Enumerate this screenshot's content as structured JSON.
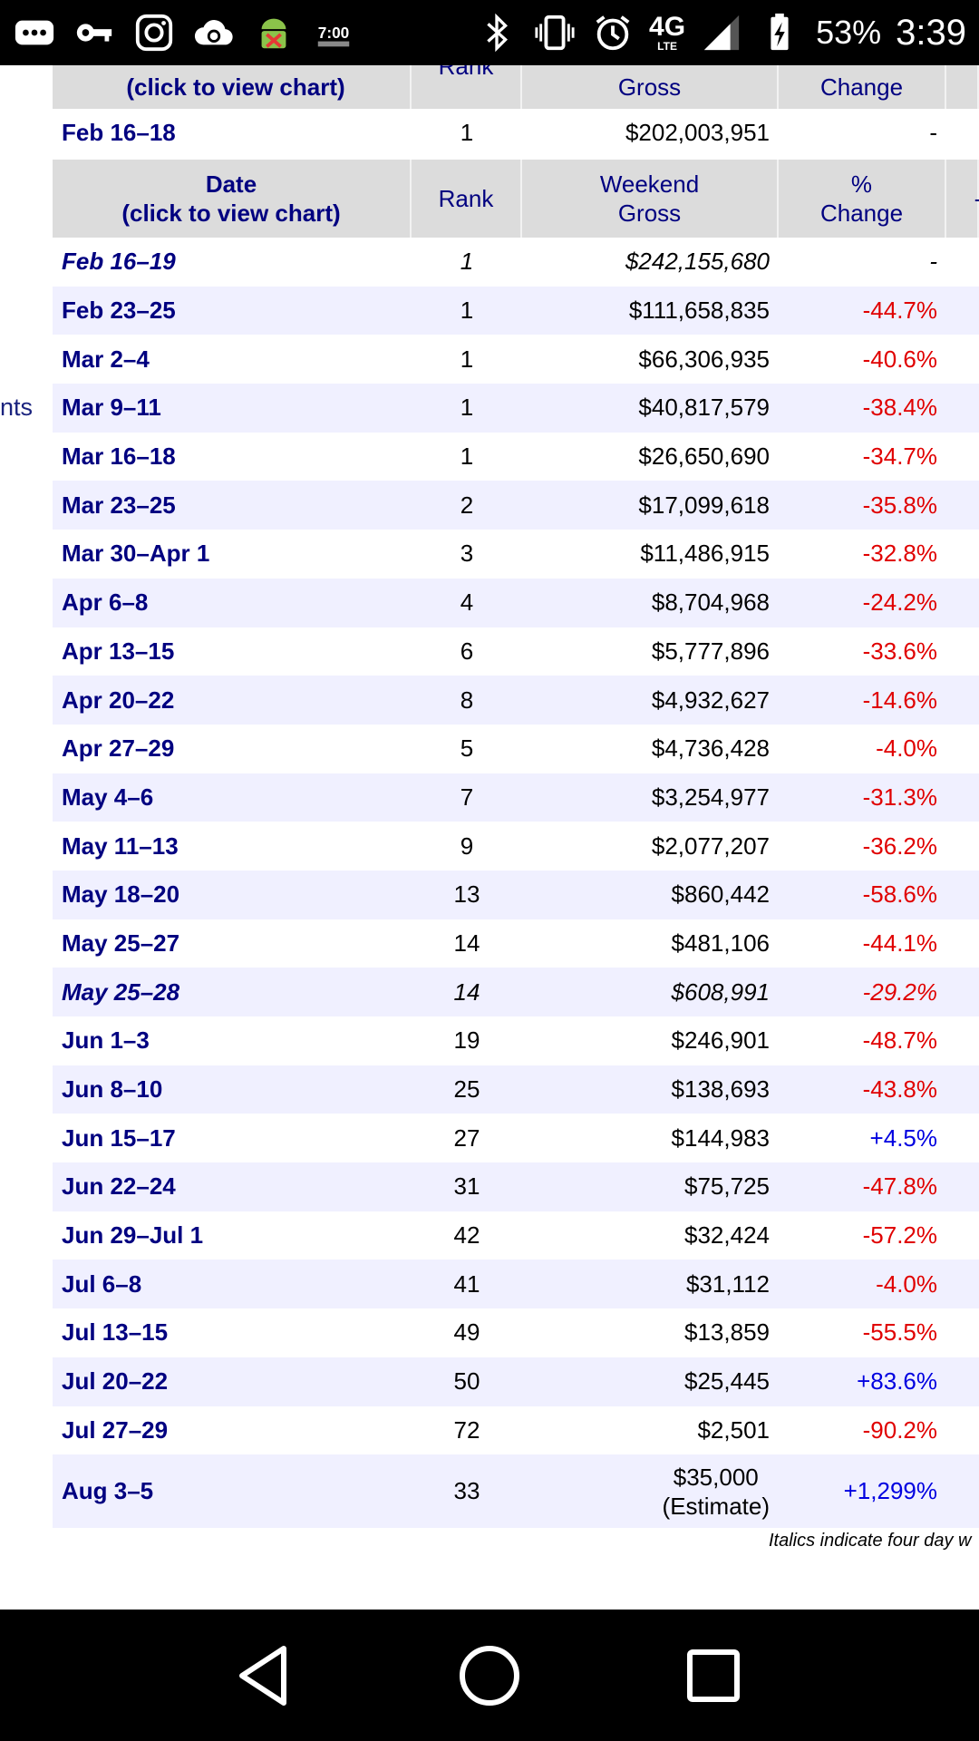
{
  "status_bar": {
    "icons": [
      "more-icon",
      "key-icon",
      "instagram-icon",
      "cloud-sync-icon",
      "android-icon",
      "clock-widget-icon",
      "bluetooth-icon",
      "vibrate-icon",
      "alarm-icon",
      "lte-icon",
      "signal-icon",
      "battery-icon"
    ],
    "network": "4G",
    "network_sub": "LTE",
    "battery": "53%",
    "time": "3:39"
  },
  "side_text": "nts",
  "top_header": {
    "date": "(click to view chart)",
    "rank": "Rank",
    "gross": "Gross",
    "change": "Change"
  },
  "top_row": {
    "date": "Feb 16–18",
    "rank": "1",
    "gross": "$202,003,951",
    "change": "-"
  },
  "header": {
    "date_line1": "Date",
    "date_line2": "(click to view chart)",
    "rank": "Rank",
    "gross_line1": "Weekend",
    "gross_line2": "Gross",
    "change_line1": "%",
    "change_line2": "Change"
  },
  "rows": [
    {
      "date": "Feb 16–19",
      "rank": "1",
      "gross": "$242,155,680",
      "change": "-",
      "italic": true,
      "type": "neutral"
    },
    {
      "date": "Feb 23–25",
      "rank": "1",
      "gross": "$111,658,835",
      "change": "-44.7%",
      "type": "neg"
    },
    {
      "date": "Mar 2–4",
      "rank": "1",
      "gross": "$66,306,935",
      "change": "-40.6%",
      "type": "neg"
    },
    {
      "date": "Mar 9–11",
      "rank": "1",
      "gross": "$40,817,579",
      "change": "-38.4%",
      "type": "neg"
    },
    {
      "date": "Mar 16–18",
      "rank": "1",
      "gross": "$26,650,690",
      "change": "-34.7%",
      "type": "neg"
    },
    {
      "date": "Mar 23–25",
      "rank": "2",
      "gross": "$17,099,618",
      "change": "-35.8%",
      "type": "neg"
    },
    {
      "date": "Mar 30–Apr 1",
      "rank": "3",
      "gross": "$11,486,915",
      "change": "-32.8%",
      "type": "neg"
    },
    {
      "date": "Apr 6–8",
      "rank": "4",
      "gross": "$8,704,968",
      "change": "-24.2%",
      "type": "neg"
    },
    {
      "date": "Apr 13–15",
      "rank": "6",
      "gross": "$5,777,896",
      "change": "-33.6%",
      "type": "neg"
    },
    {
      "date": "Apr 20–22",
      "rank": "8",
      "gross": "$4,932,627",
      "change": "-14.6%",
      "type": "neg"
    },
    {
      "date": "Apr 27–29",
      "rank": "5",
      "gross": "$4,736,428",
      "change": "-4.0%",
      "type": "neg"
    },
    {
      "date": "May 4–6",
      "rank": "7",
      "gross": "$3,254,977",
      "change": "-31.3%",
      "type": "neg"
    },
    {
      "date": "May 11–13",
      "rank": "9",
      "gross": "$2,077,207",
      "change": "-36.2%",
      "type": "neg"
    },
    {
      "date": "May 18–20",
      "rank": "13",
      "gross": "$860,442",
      "change": "-58.6%",
      "type": "neg"
    },
    {
      "date": "May 25–27",
      "rank": "14",
      "gross": "$481,106",
      "change": "-44.1%",
      "type": "neg"
    },
    {
      "date": "May 25–28",
      "rank": "14",
      "gross": "$608,991",
      "change": "-29.2%",
      "italic": true,
      "type": "neg"
    },
    {
      "date": "Jun 1–3",
      "rank": "19",
      "gross": "$246,901",
      "change": "-48.7%",
      "type": "neg"
    },
    {
      "date": "Jun 8–10",
      "rank": "25",
      "gross": "$138,693",
      "change": "-43.8%",
      "type": "neg"
    },
    {
      "date": "Jun 15–17",
      "rank": "27",
      "gross": "$144,983",
      "change": "+4.5%",
      "type": "pos"
    },
    {
      "date": "Jun 22–24",
      "rank": "31",
      "gross": "$75,725",
      "change": "-47.8%",
      "type": "neg"
    },
    {
      "date": "Jun 29–Jul 1",
      "rank": "42",
      "gross": "$32,424",
      "change": "-57.2%",
      "type": "neg"
    },
    {
      "date": "Jul 6–8",
      "rank": "41",
      "gross": "$31,112",
      "change": "-4.0%",
      "type": "neg"
    },
    {
      "date": "Jul 13–15",
      "rank": "49",
      "gross": "$13,859",
      "change": "-55.5%",
      "type": "neg"
    },
    {
      "date": "Jul 20–22",
      "rank": "50",
      "gross": "$25,445",
      "change": "+83.6%",
      "type": "pos"
    },
    {
      "date": "Jul 27–29",
      "rank": "72",
      "gross": "$2,501",
      "change": "-90.2%",
      "type": "neg"
    },
    {
      "date": "Aug 3–5",
      "rank": "33",
      "gross": "$35,000",
      "gross_note": "(Estimate)",
      "change": "+1,299%",
      "type": "pos",
      "tall": true
    }
  ],
  "footnote": "Italics indicate four day w",
  "colors": {
    "header_bg": "#dcdcdc",
    "alt_row": "#f0f0ff",
    "link": "#000080",
    "negative": "#e00000",
    "positive": "#0000e0"
  }
}
